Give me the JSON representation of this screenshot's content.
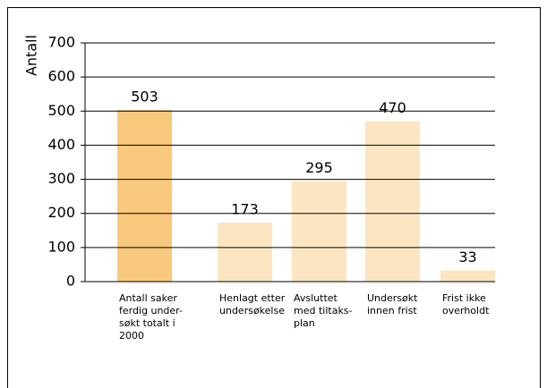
{
  "chart_data": {
    "type": "bar",
    "y_label": "Antall",
    "categories": [
      [
        "Antall saker",
        "ferdig under-",
        "søkt totalt i",
        "2000"
      ],
      [
        "Henlagt etter",
        "undersøkelse"
      ],
      [
        "Avsluttet",
        "med tiltaks-",
        "plan"
      ],
      [
        "Undersøkt",
        "innen frist"
      ],
      [
        "Frist ikke",
        "overholdt"
      ]
    ],
    "values": [
      503,
      173,
      295,
      470,
      33
    ],
    "colors": [
      "#f8c97c",
      "#fce6c2",
      "#fce6c2",
      "#fce6c2",
      "#fce6c2"
    ],
    "ylim": [
      0,
      700
    ],
    "yticks": [
      0,
      100,
      200,
      300,
      400,
      500,
      600,
      700
    ],
    "grid": true
  }
}
